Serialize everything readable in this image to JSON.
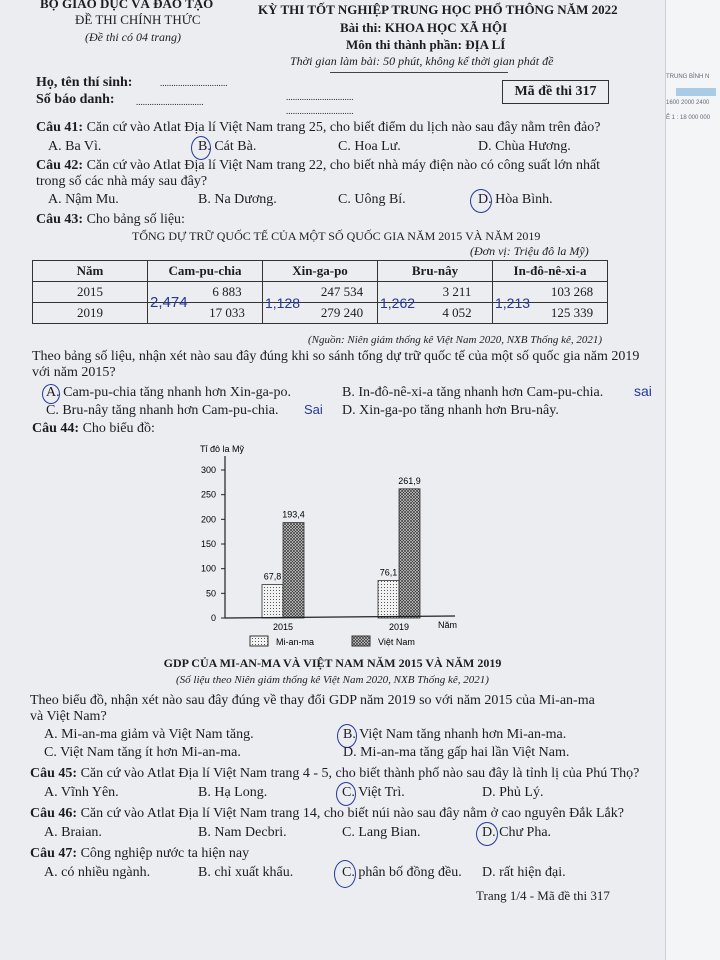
{
  "header": {
    "ministry": "BỘ GIÁO DỤC VÀ ĐÀO TẠO",
    "official": "ĐỀ THI CHÍNH THỨC",
    "pages_note": "(Đề thi có 04 trang)",
    "exam_title": "KỲ THI TỐT NGHIỆP TRUNG HỌC PHỔ THÔNG NĂM 2022",
    "subject": "Bài thi: KHOA HỌC XÃ HỘI",
    "component": "Môn thi thành phần: ĐỊA LÍ",
    "time": "Thời gian làm bài: 50 phút, không kể thời gian phát đề",
    "name_label": "Họ, tên thí sinh:",
    "id_label": "Số báo danh:",
    "dots": "..............................",
    "exam_code": "Mã đề thi 317"
  },
  "questions": [
    {
      "label": "Câu 41:",
      "text": "Căn cứ vào Atlat Địa lí Việt Nam trang 25, cho biết điểm du lịch nào sau đây nằm trên đảo?",
      "options": [
        "A. Ba Vì.",
        "B. Cát Bà.",
        "C. Hoa Lư.",
        "D. Chùa Hương."
      ],
      "circled": "B"
    },
    {
      "label": "Câu 42:",
      "text": "Căn cứ vào Atlat Địa lí Việt Nam trang 22, cho biết nhà máy điện nào có công suất lớn nhất",
      "text2": "trong số các nhà máy sau đây?",
      "options": [
        "A. Nậm Mu.",
        "B. Na Dương.",
        "C. Uông Bí.",
        "D. Hòa Bình."
      ],
      "circled": "D"
    },
    {
      "label": "Câu 43:",
      "text": "Cho bảng số liệu:",
      "table_title": "TỔNG DỰ TRỮ QUỐC TẾ CỦA MỘT SỐ QUỐC GIA NĂM 2015 VÀ NĂM 2019",
      "unit": "(Đơn vị: Triệu đô la Mỹ)",
      "columns": [
        "Năm",
        "Cam-pu-chia",
        "Xin-ga-po",
        "Bru-nây",
        "In-đô-nê-xi-a"
      ],
      "rows": [
        [
          "2015",
          "6 883",
          "247 534",
          "3 211",
          "103 268"
        ],
        [
          "2019",
          "17 033",
          "279 240",
          "4 052",
          "125 339"
        ]
      ],
      "source": "(Nguồn: Niên giám thống kê Việt Nam 2020, NXB Thống kê, 2021)",
      "prompt": "Theo bảng số liệu, nhận xét nào sau đây đúng khi so sánh tổng dự trữ quốc tế của một số quốc gia năm 2019",
      "prompt2": "với năm 2015?",
      "options": [
        "A. Cam-pu-chia tăng nhanh hơn Xin-ga-po.",
        "B. In-đô-nê-xi-a tăng nhanh hơn Cam-pu-chia.",
        "C. Bru-nây tăng nhanh hơn Cam-pu-chia.",
        "D. Xin-ga-po tăng nhanh hơn Bru-nây."
      ],
      "circled": "A",
      "handwritten": [
        "2,474",
        "1,128",
        "1,262",
        "1,213",
        "sai",
        "Sai"
      ]
    },
    {
      "label": "Câu 44:",
      "text": "Cho biểu đồ:",
      "chart_title": "GDP CỦA MI-AN-MA VÀ VIỆT NAM NĂM 2015 VÀ NĂM 2019",
      "chart_source": "(Số liệu theo Niên giám thống kê Việt Nam 2020, NXB Thống kê, 2021)",
      "prompt": "Theo biểu đồ, nhận xét nào sau đây đúng về thay đổi GDP năm 2019 so với năm 2015 của Mi-an-ma",
      "prompt2": "và Việt Nam?",
      "options": [
        "A. Mi-an-ma giảm và Việt Nam tăng.",
        "B. Việt Nam tăng nhanh hơn Mi-an-ma.",
        "C. Việt Nam tăng ít hơn Mi-an-ma.",
        "D. Mi-an-ma tăng gấp hai lần Việt Nam."
      ],
      "circled": "B"
    },
    {
      "label": "Câu 45:",
      "text": "Căn cứ vào Atlat Địa lí Việt Nam trang 4 - 5, cho biết thành phố nào sau đây là tỉnh lị của Phú Thọ?",
      "options": [
        "A. Vĩnh Yên.",
        "B. Hạ Long.",
        "C. Việt Trì.",
        "D. Phủ Lý."
      ],
      "circled": "C"
    },
    {
      "label": "Câu 46:",
      "text": "Căn cứ vào Atlat Địa lí Việt Nam trang 14, cho biết núi nào sau đây nằm ở cao nguyên Đắk Lắk?",
      "options": [
        "A. Braian.",
        "B. Nam Decbri.",
        "C. Lang Bian.",
        "D. Chư Pha."
      ],
      "circled": "D"
    },
    {
      "label": "Câu 47:",
      "text": "Công nghiệp nước ta hiện nay",
      "options": [
        "A. có nhiều ngành.",
        "B. chỉ xuất khẩu.",
        "C. phân bố đồng đều.",
        "D. rất hiện đại."
      ],
      "circled": "C"
    }
  ],
  "footer": "Trang 1/4 - Mã đề thi 317",
  "side_panel": {
    "l1": "TRUNG BÌNH N",
    "l2": "1600 2000 2400",
    "l3": "Ê 1 : 18 000 000"
  },
  "chart_data": {
    "type": "bar",
    "ylabel": "Tỉ đô la Mỹ",
    "xlabel": "Năm",
    "categories": [
      "2015",
      "2019"
    ],
    "series": [
      {
        "name": "Mi-an-ma",
        "values": [
          67.8,
          76.1
        ],
        "data_labels": [
          "67,8",
          "76,1"
        ],
        "pattern": "dots"
      },
      {
        "name": "Việt Nam",
        "values": [
          193.4,
          261.9
        ],
        "data_labels": [
          "193,4",
          "261,9"
        ],
        "pattern": "crosshatch"
      }
    ],
    "yticks": [
      "0",
      "50",
      "100",
      "150",
      "200",
      "250",
      "300"
    ],
    "ylim": [
      0,
      300
    ],
    "legend": "bottom",
    "grid": false
  }
}
